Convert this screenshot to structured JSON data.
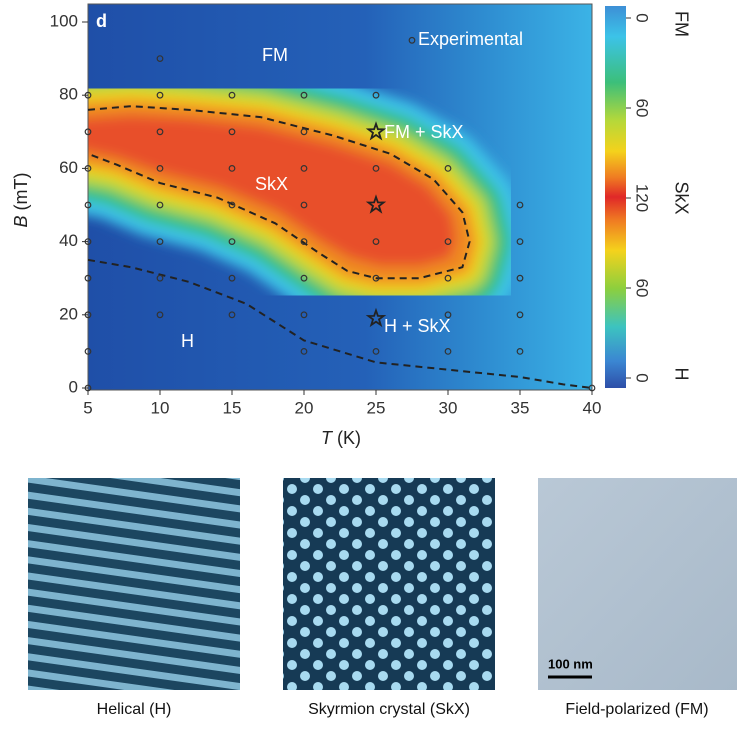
{
  "chart_data": {
    "type": "contour",
    "panel_label": "d",
    "annotation": "Experimental",
    "region_labels": [
      "FM",
      "SkX",
      "FM + SkX",
      "H + SkX",
      "H"
    ],
    "xlabel": "T",
    "xlabel_unit": "(K)",
    "ylabel": "B",
    "ylabel_unit": "(mT)",
    "xlim": [
      5,
      40
    ],
    "xticks": [
      5,
      10,
      15,
      20,
      25,
      30,
      35,
      40
    ],
    "ylim": [
      0,
      105
    ],
    "yticks": [
      0,
      20,
      40,
      60,
      80,
      100
    ],
    "points": {
      "x": [
        5,
        5,
        5,
        5,
        5,
        5,
        5,
        5,
        5,
        10,
        10,
        10,
        10,
        10,
        10,
        10,
        10,
        15,
        15,
        15,
        15,
        15,
        15,
        15,
        20,
        20,
        20,
        20,
        20,
        20,
        20,
        20,
        25,
        25,
        25,
        25,
        25,
        30,
        30,
        30,
        30,
        30,
        35,
        35,
        35,
        35,
        35,
        40,
        27.5
      ],
      "y": [
        0,
        10,
        20,
        30,
        40,
        50,
        60,
        70,
        80,
        20,
        30,
        40,
        50,
        60,
        70,
        80,
        90,
        20,
        30,
        40,
        50,
        60,
        70,
        80,
        10,
        20,
        30,
        40,
        50,
        60,
        70,
        80,
        10,
        30,
        40,
        60,
        80,
        10,
        20,
        30,
        40,
        60,
        10,
        20,
        30,
        40,
        50,
        0,
        95
      ]
    },
    "stars": {
      "x": [
        25,
        25,
        25
      ],
      "y": [
        70,
        50,
        19
      ]
    },
    "boundaries": [
      {
        "x": [
          5,
          8,
          12,
          17,
          22,
          26,
          29,
          31,
          31.5,
          31,
          28,
          25,
          23,
          21,
          18,
          14,
          10,
          7,
          5
        ],
        "y": [
          76,
          77,
          76,
          74,
          69,
          64,
          57,
          48,
          40,
          33,
          30,
          30,
          32,
          37,
          45,
          52,
          56,
          61,
          64
        ]
      },
      {
        "x": [
          5,
          8,
          12,
          16,
          20,
          25,
          30,
          35,
          38,
          40
        ],
        "y": [
          35,
          33,
          29,
          23,
          13,
          7,
          5,
          3,
          1,
          0
        ]
      }
    ],
    "colorbar": {
      "ticks": [
        0,
        60,
        120,
        60,
        0
      ],
      "labels": [
        "FM",
        "SkX",
        "H"
      ]
    }
  },
  "panels": {
    "captions": [
      "Helical (H)",
      "Skyrmion crystal (SkX)",
      "Field-polarized (FM)"
    ],
    "scale_bar": "100 nm"
  }
}
